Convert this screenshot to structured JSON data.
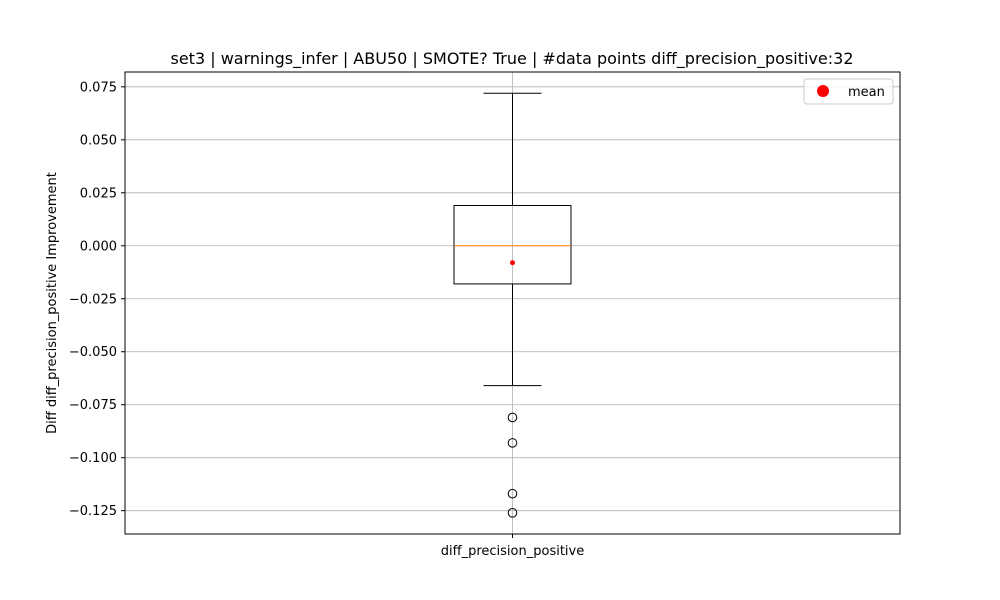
{
  "chart_data": {
    "type": "box",
    "title": "set3 | warnings_infer | ABU50 | SMOTE? True | #data points diff_precision_positive:32",
    "xlabel": "",
    "ylabel": "Diff diff_precision_positive Improvement",
    "categories": [
      "diff_precision_positive"
    ],
    "ylim": [
      -0.136,
      0.082
    ],
    "yticks": [
      0.075,
      0.05,
      0.025,
      0.0,
      -0.025,
      -0.05,
      -0.075,
      -0.1,
      -0.125
    ],
    "ytick_labels": [
      "0.075",
      "0.050",
      "0.025",
      "0.000",
      "−0.025",
      "−0.050",
      "−0.075",
      "−0.100",
      "−0.125"
    ],
    "grid": true,
    "legend_position": "top-right",
    "boxes": [
      {
        "category": "diff_precision_positive",
        "whisker_high": 0.072,
        "q3": 0.019,
        "median": 0.0,
        "q1": -0.018,
        "whisker_low": -0.066,
        "mean": -0.008,
        "outliers": [
          -0.081,
          -0.093,
          -0.117,
          -0.126
        ]
      }
    ],
    "legend": [
      {
        "label": "mean",
        "color": "#ff0000"
      }
    ],
    "colors": {
      "box": "#000000",
      "median": "#ff7f0e",
      "mean": "#ff0000",
      "grid": "#b0b0b0"
    }
  }
}
